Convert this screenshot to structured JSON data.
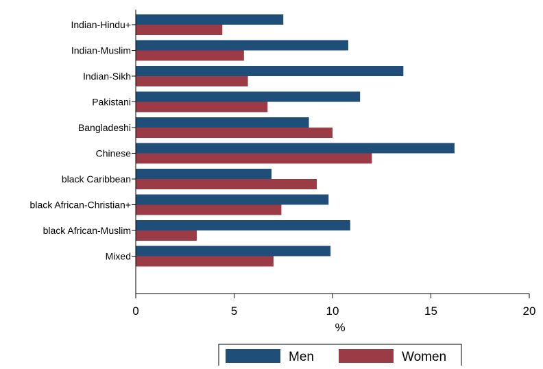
{
  "chart_data": {
    "type": "bar",
    "orientation": "horizontal",
    "categories": [
      "Indian-Hindu+",
      "Indian-Muslim",
      "Indian-Sikh",
      "Pakistani",
      "Bangladeshi",
      "Chinese",
      "black Caribbean",
      "black African-Christian+",
      "black African-Muslim",
      "Mixed"
    ],
    "series": [
      {
        "name": "Men",
        "values": [
          7.5,
          10.8,
          13.6,
          11.4,
          8.8,
          16.2,
          6.9,
          9.8,
          10.9,
          9.9
        ]
      },
      {
        "name": "Women",
        "values": [
          4.4,
          5.5,
          5.7,
          6.7,
          10.0,
          12.0,
          9.2,
          7.4,
          3.1,
          7.0
        ]
      }
    ],
    "xlabel": "%",
    "ylabel": "",
    "xlim": [
      0,
      20
    ],
    "xticks": [
      0,
      5,
      10,
      15,
      20
    ],
    "grid": false,
    "legend_position": "bottom"
  },
  "colors": {
    "Men": "#1f4e79",
    "Women": "#9a3b45",
    "axis": "#000000"
  }
}
